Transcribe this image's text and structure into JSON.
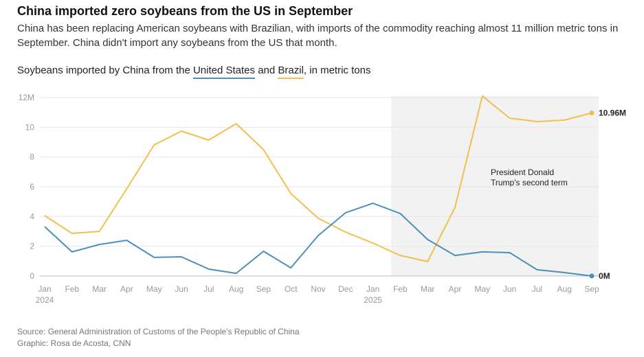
{
  "title": "China imported zero soybeans from the US in September",
  "subtitle": "China has been replacing American soybeans with Brazilian, with imports of the commodity reaching almost 11 million metric tons in September. China didn't import any soybeans from the US that month.",
  "chart_title": {
    "prefix": "Soybeans imported by China from the ",
    "us": "United States",
    "and": " and ",
    "brazil": "Brazil",
    "suffix": ", in metric tons"
  },
  "source": "Source: General Administration of Customs of the People's Republic of China",
  "graphic": "Graphic: Rosa de Acosta, CNN",
  "chart_data": {
    "type": "line",
    "categories": [
      "Jan",
      "Feb",
      "Mar",
      "Apr",
      "May",
      "Jun",
      "Jul",
      "Aug",
      "Sep",
      "Oct",
      "Nov",
      "Dec",
      "Jan",
      "Feb",
      "Mar",
      "Apr",
      "May",
      "Jun",
      "Jul",
      "Aug",
      "Sep"
    ],
    "year_labels": {
      "0": "2024",
      "12": "2025"
    },
    "ylim": [
      0,
      12
    ],
    "yticks": [
      {
        "v": 0,
        "label": "0"
      },
      {
        "v": 2,
        "label": "2"
      },
      {
        "v": 4,
        "label": "4"
      },
      {
        "v": 6,
        "label": "6"
      },
      {
        "v": 8,
        "label": "8"
      },
      {
        "v": 10,
        "label": "10"
      },
      {
        "v": 12,
        "label": "12M"
      }
    ],
    "series": [
      {
        "name": "United States",
        "color": "#4b8fbd",
        "values": [
          3.32,
          1.62,
          2.12,
          2.4,
          1.25,
          1.29,
          0.46,
          0.18,
          1.66,
          0.55,
          2.72,
          4.25,
          4.89,
          4.2,
          2.45,
          1.38,
          1.62,
          1.57,
          0.42,
          0.23,
          0
        ],
        "end_label": "0M"
      },
      {
        "name": "Brazil",
        "color": "#f2bf4c",
        "values": [
          4.06,
          2.86,
          3.0,
          5.86,
          8.81,
          9.74,
          9.14,
          10.24,
          8.49,
          5.54,
          3.88,
          2.95,
          2.21,
          1.38,
          0.97,
          4.61,
          12.1,
          10.61,
          10.38,
          10.48,
          10.96
        ],
        "end_label": "10.96M"
      }
    ],
    "shaded_region": {
      "start_index": 12.66,
      "end_index": 20.25,
      "label_line1": "President Donald",
      "label_line2": "Trump's second term"
    },
    "grid": true
  }
}
